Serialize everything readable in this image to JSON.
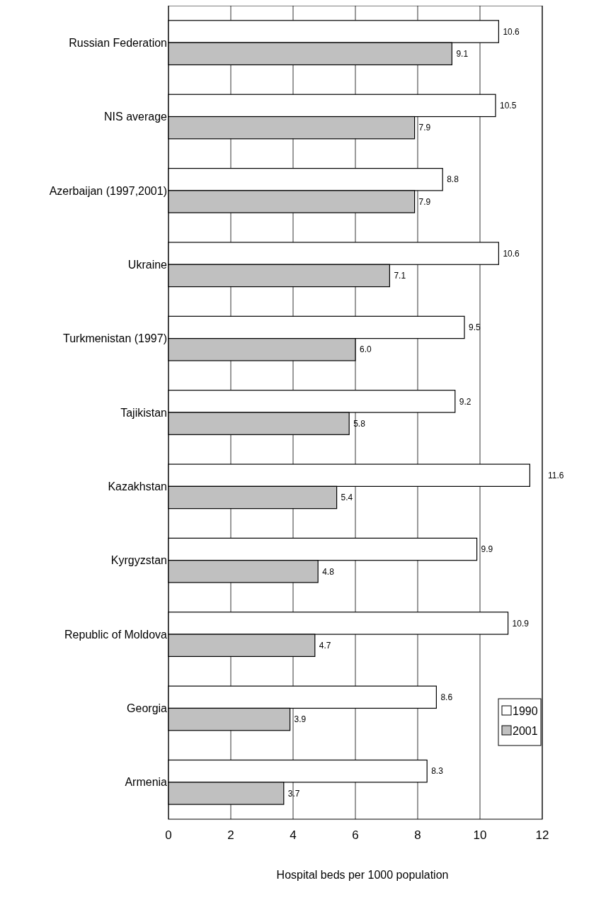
{
  "chart_data": {
    "type": "bar",
    "orientation": "horizontal",
    "xlabel": "Hospital beds per 1000 population",
    "categories": [
      "Russian Federation",
      "NIS average",
      "Azerbaijan (1997,2001)",
      "Ukraine",
      "Turkmenistan (1997)",
      "Tajikistan",
      "Kazakhstan",
      "Kyrgyzstan",
      "Republic of Moldova",
      "Georgia",
      "Armenia"
    ],
    "series": [
      {
        "name": "1990",
        "color": "#ffffff",
        "values": [
          10.6,
          10.5,
          8.8,
          10.6,
          9.5,
          9.2,
          11.6,
          9.9,
          10.9,
          8.6,
          8.3
        ],
        "value_labels": [
          "10.6",
          "10.5",
          "8.8",
          "10.6",
          "9.5",
          "9.2",
          "11.6",
          "9.9",
          "10.9",
          "8.6",
          "8.3"
        ]
      },
      {
        "name": "2001",
        "color": "#c0c0c0",
        "values": [
          9.1,
          7.9,
          7.9,
          7.1,
          6.0,
          5.8,
          5.4,
          4.8,
          4.7,
          3.9,
          3.7
        ],
        "value_labels": [
          "9.1",
          "7.9",
          "7.9",
          "7.1",
          "6.0",
          "5.8",
          "5.4",
          "4.8",
          "4.7",
          "3.9",
          "3.7"
        ]
      }
    ],
    "xlim": [
      0,
      12
    ],
    "xticks": [
      0,
      2,
      4,
      6,
      8,
      10,
      12
    ],
    "grid": "x",
    "legend": "bottom right"
  }
}
